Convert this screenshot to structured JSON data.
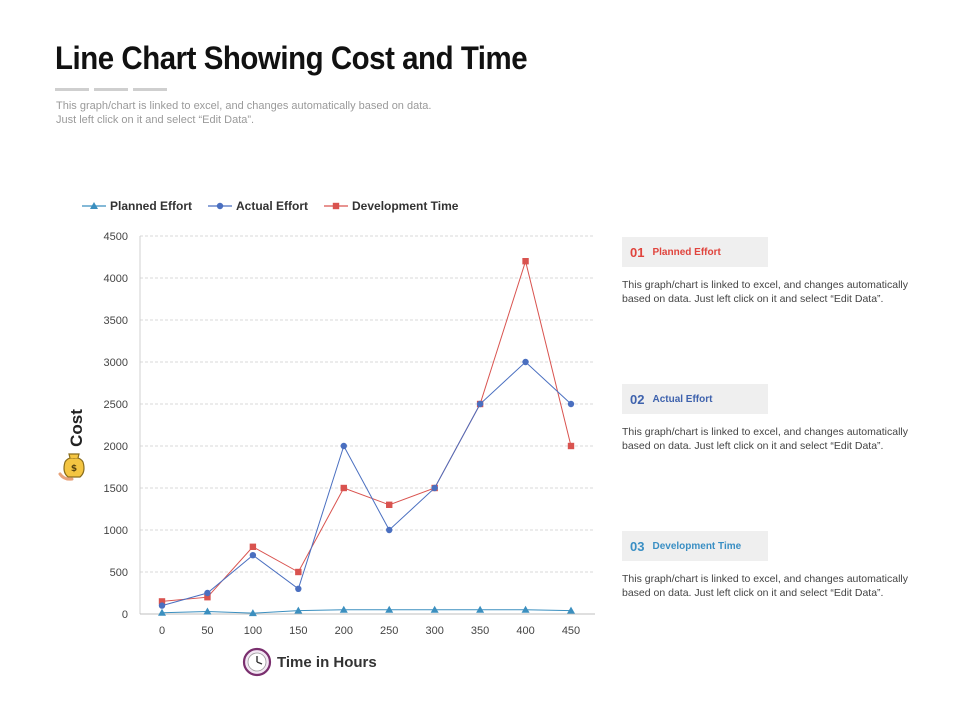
{
  "page": {
    "title": "Line Chart Showing Cost and Time",
    "subtitle_lines": [
      "This graph/chart is linked to excel, and changes automatically based on data.",
      "Just left click on it and select “Edit Data”."
    ]
  },
  "chart_data": {
    "type": "line",
    "xlabel": "Time in Hours",
    "ylabel": "Cost",
    "x": [
      0,
      50,
      100,
      150,
      200,
      250,
      300,
      350,
      400,
      450
    ],
    "ylim": [
      0,
      4500
    ],
    "yticks": [
      0,
      500,
      1000,
      1500,
      2000,
      2500,
      3000,
      3500,
      4000,
      4500
    ],
    "grid": true,
    "legend_position": "top-left",
    "series": [
      {
        "name": "Planned Effort",
        "color": "#3b8fbf",
        "marker": "triangle",
        "values": [
          15,
          30,
          10,
          40,
          50,
          50,
          50,
          50,
          50,
          40
        ]
      },
      {
        "name": "Actual Effort",
        "color": "#4a6fc0",
        "marker": "circle",
        "values": [
          100,
          250,
          700,
          300,
          2000,
          1000,
          1500,
          2500,
          3000,
          2500
        ]
      },
      {
        "name": "Development Time",
        "color": "#d9534f",
        "marker": "square",
        "values": [
          150,
          200,
          800,
          500,
          1500,
          1300,
          1500,
          2500,
          4200,
          2000
        ]
      }
    ]
  },
  "notes": [
    {
      "number": "01",
      "title": "Planned Effort",
      "color": "#e0443d",
      "text": "This graph/chart is linked to excel, and changes automatically based on data. Just left click on it and select “Edit Data”."
    },
    {
      "number": "02",
      "title": "Actual Effort",
      "color": "#3e62ad",
      "text": "This graph/chart is linked to excel, and changes automatically based on data. Just left click on it and select “Edit Data”."
    },
    {
      "number": "03",
      "title": "Development Time",
      "color": "#3a8fc4",
      "text": "This graph/chart is linked to excel, and changes automatically based on data. Just left click on it and select “Edit Data”."
    }
  ]
}
